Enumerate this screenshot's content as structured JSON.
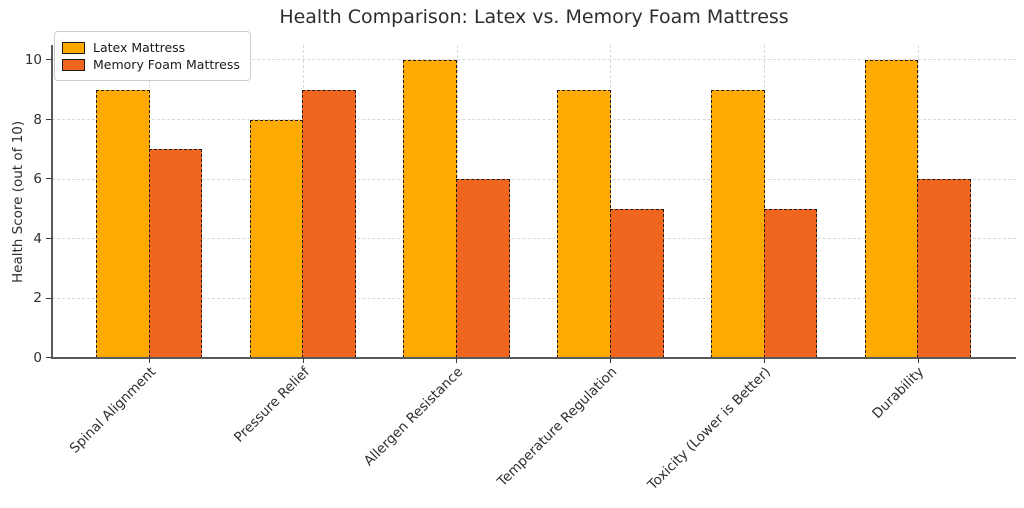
{
  "chart_data": {
    "type": "bar",
    "title": "Health Comparison: Latex vs. Memory Foam Mattress",
    "ylabel": "Health Score (out of 10)",
    "xlabel": "",
    "categories": [
      "Spinal Alignment",
      "Pressure Relief",
      "Allergen Resistance",
      "Temperature Regulation",
      "Toxicity (Lower is Better)",
      "Durability"
    ],
    "series": [
      {
        "name": "Latex Mattress",
        "color": "#FFAA00",
        "edge_color": "#1a1a1a",
        "values": [
          9,
          8,
          10,
          9,
          9,
          10
        ]
      },
      {
        "name": "Memory Foam Mattress",
        "color": "#F0661E",
        "edge_color": "#1a1a1a",
        "values": [
          7,
          9,
          6,
          5,
          5,
          6
        ]
      }
    ],
    "yticks": [
      0,
      2,
      4,
      6,
      8,
      10
    ],
    "ylim": [
      0,
      10.5
    ],
    "bar_edge_style": "dashed",
    "grid": {
      "horizontal": true,
      "vertical": true,
      "style": "dashed"
    },
    "legend_position": "upper-left"
  }
}
